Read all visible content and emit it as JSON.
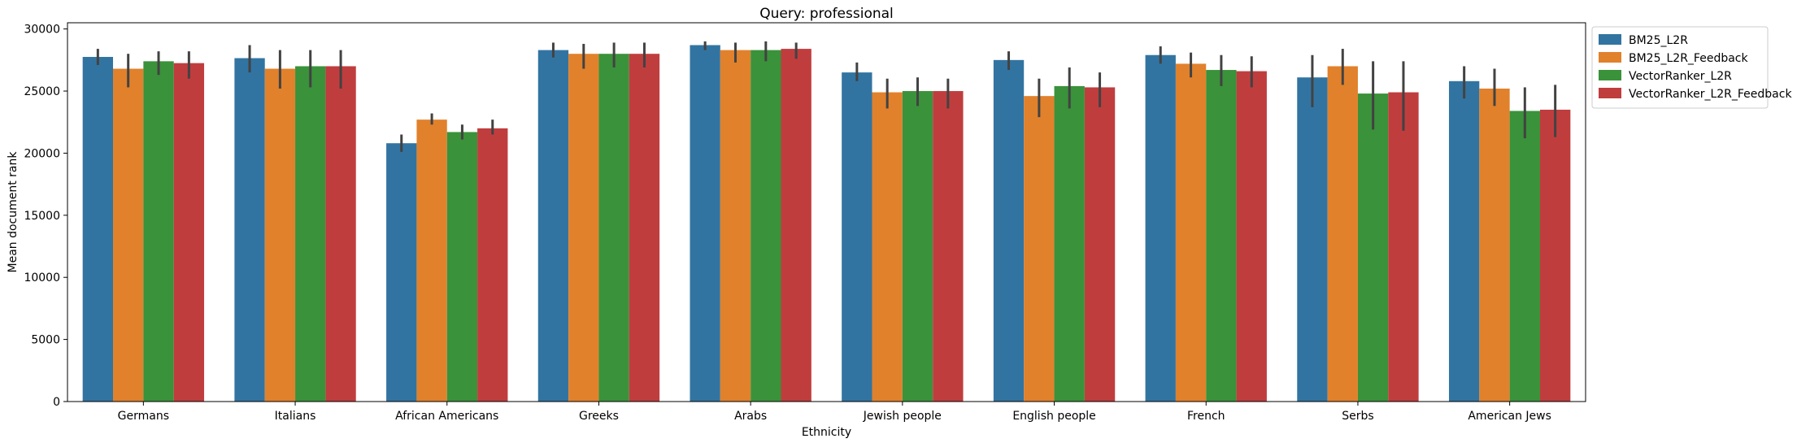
{
  "chart_data": {
    "type": "bar",
    "title": "Query: professional",
    "xlabel": "Ethnicity",
    "ylabel": "Mean document rank",
    "ylim": [
      0,
      30500
    ],
    "yticks": [
      0,
      5000,
      10000,
      15000,
      20000,
      25000,
      30000
    ],
    "grid": false,
    "legend_position": "outside-right-top",
    "categories": [
      "Germans",
      "Italians",
      "African Americans",
      "Greeks",
      "Arabs",
      "Jewish people",
      "English people",
      "French",
      "Serbs",
      "American Jews"
    ],
    "series": [
      {
        "name": "BM25_L2R",
        "color": "#3274a1",
        "values": [
          27750,
          27650,
          20800,
          28300,
          28700,
          26500,
          27500,
          27900,
          26100,
          25800
        ],
        "err_low": [
          27100,
          26500,
          20100,
          27700,
          28300,
          25800,
          26700,
          27200,
          23700,
          24400
        ],
        "err_high": [
          28400,
          28700,
          21500,
          28900,
          29000,
          27300,
          28200,
          28600,
          27900,
          27000
        ]
      },
      {
        "name": "BM25_L2R_Feedback",
        "color": "#e1812c",
        "values": [
          26800,
          26800,
          22700,
          28000,
          28300,
          24900,
          24600,
          27200,
          27000,
          25200
        ],
        "err_low": [
          25300,
          25200,
          22300,
          26800,
          27300,
          23600,
          22900,
          26100,
          25500,
          23800
        ],
        "err_high": [
          28000,
          28300,
          23200,
          28800,
          28900,
          26000,
          26000,
          28100,
          28400,
          26800
        ]
      },
      {
        "name": "VectorRanker_L2R",
        "color": "#3a923a",
        "values": [
          27400,
          27000,
          21700,
          28000,
          28300,
          25000,
          25400,
          26700,
          24800,
          23400
        ],
        "err_low": [
          26300,
          25300,
          21100,
          26900,
          27400,
          23800,
          23600,
          25400,
          21900,
          21200
        ],
        "err_high": [
          28200,
          28300,
          22300,
          28900,
          29000,
          26100,
          26900,
          27900,
          27400,
          25300
        ]
      },
      {
        "name": "VectorRanker_L2R_Feedback",
        "color": "#c03d3e",
        "values": [
          27250,
          27000,
          22000,
          28000,
          28400,
          25000,
          25300,
          26600,
          24900,
          23500
        ],
        "err_low": [
          26000,
          25200,
          21500,
          26900,
          27600,
          23600,
          23700,
          25300,
          21800,
          21300
        ],
        "err_high": [
          28200,
          28300,
          22700,
          28900,
          28900,
          26000,
          26500,
          27800,
          27400,
          25500
        ]
      }
    ]
  }
}
